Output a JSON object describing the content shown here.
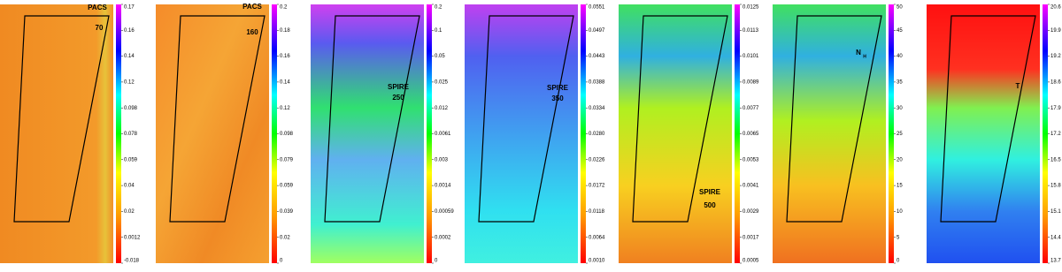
{
  "panels": [
    {
      "label": [
        "PACS",
        "70"
      ],
      "colorbar_ticks": [
        "0.17",
        "0.16",
        "0.14",
        "0.12",
        "0.098",
        "0.078",
        "0.059",
        "0.04",
        "0.02",
        "0.0012",
        "-0.018"
      ]
    },
    {
      "label": [
        "PACS",
        "160"
      ],
      "colorbar_ticks": [
        "0.2",
        "0.18",
        "0.16",
        "0.14",
        "0.12",
        "0.098",
        "0.079",
        "0.059",
        "0.039",
        "0.02",
        "0"
      ]
    },
    {
      "label": [
        "SPIRE",
        "250"
      ],
      "colorbar_ticks": [
        "0.2",
        "0.1",
        "0.05",
        "0.025",
        "0.012",
        "0.0061",
        "0.003",
        "0.0014",
        "0.00059",
        "0.0002",
        "0"
      ]
    },
    {
      "label": [
        "SPIRE",
        "350"
      ],
      "colorbar_ticks": [
        "0.0551",
        "0.0497",
        "0.0443",
        "0.0388",
        "0.0334",
        "0.0280",
        "0.0226",
        "0.0172",
        "0.0118",
        "0.0064",
        "0.0010"
      ]
    },
    {
      "label": [
        "SPIRE",
        "500"
      ],
      "colorbar_ticks": [
        "0.0125",
        "0.0113",
        "0.0101",
        "0.0089",
        "0.0077",
        "0.0065",
        "0.0053",
        "0.0041",
        "0.0029",
        "0.0017",
        "0.0005"
      ]
    },
    {
      "label": [
        "N",
        "H"
      ],
      "colorbar_ticks": [
        "50",
        "45",
        "40",
        "35",
        "30",
        "25",
        "20",
        "15",
        "10",
        "5",
        "0"
      ]
    },
    {
      "label": [
        "T"
      ],
      "colorbar_ticks": [
        "20.6",
        "19.9",
        "19.2",
        "18.6",
        "17.9",
        "17.2",
        "16.5",
        "15.8",
        "15.1",
        "14.4",
        "13.7"
      ]
    }
  ]
}
